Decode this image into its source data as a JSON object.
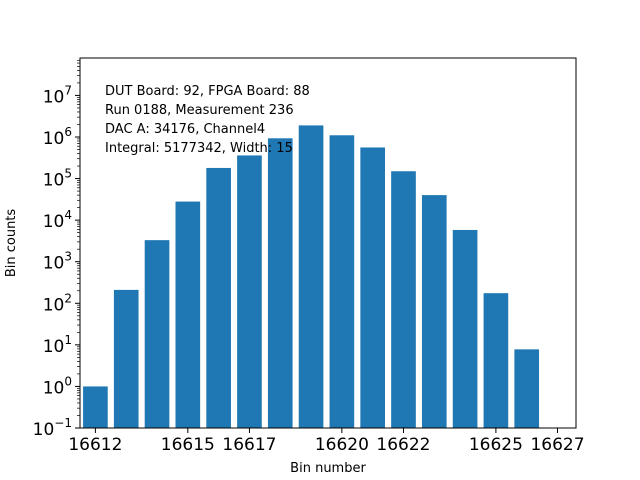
{
  "chart_data": {
    "type": "bar",
    "title": "",
    "xlabel": "Bin number",
    "ylabel": "Bin counts",
    "yscale": "log",
    "ylim_exp": [
      -1,
      7.9
    ],
    "xlim": [
      16611.5,
      16627.6
    ],
    "xticks": [
      16612,
      16615,
      16617,
      16620,
      16622,
      16625,
      16627
    ],
    "yticks_exp": [
      -1,
      0,
      1,
      2,
      3,
      4,
      5,
      6,
      7
    ],
    "bar_color": "#1f77b4",
    "x": [
      16612,
      16613,
      16614,
      16615,
      16616,
      16617,
      16618,
      16619,
      16620,
      16621,
      16622,
      16623,
      16624,
      16625,
      16626
    ],
    "values": [
      1,
      210,
      3300,
      28000,
      180000,
      360000,
      930000,
      1900000,
      1100000,
      560000,
      150000,
      40000,
      5800,
      175,
      7.8
    ],
    "annotations": [
      "DUT Board: 92, FPGA Board: 88",
      "Run 0188, Measurement 236",
      "DAC A: 34176, Channel4",
      "Integral: 5177342, Width: 15"
    ],
    "grid": false,
    "legend": "none"
  }
}
